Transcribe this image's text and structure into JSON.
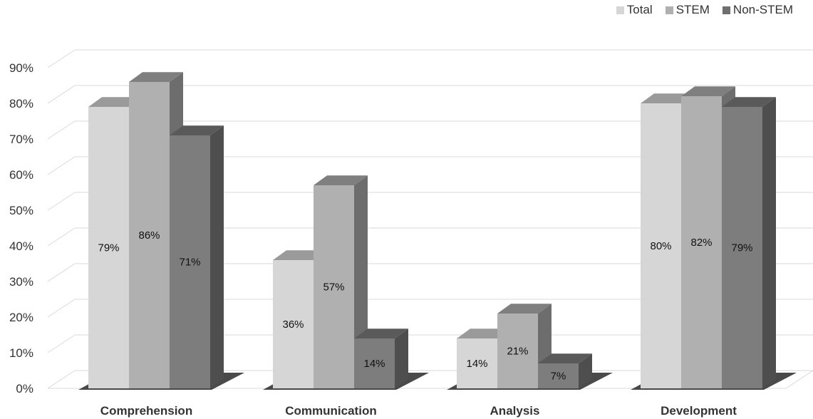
{
  "chart_data": {
    "type": "bar",
    "categories": [
      "Comprehension",
      "Communication",
      "Analysis",
      "Development"
    ],
    "series": [
      {
        "name": "Total",
        "values": [
          79,
          36,
          14,
          80
        ],
        "labels": [
          "79%",
          "36%",
          "14%",
          "80%"
        ],
        "color": "#d6d6d6"
      },
      {
        "name": "STEM",
        "values": [
          86,
          57,
          21,
          82
        ],
        "labels": [
          "86%",
          "57%",
          "21%",
          "82%"
        ],
        "color": "#b0b0b0"
      },
      {
        "name": "Non-STEM",
        "values": [
          71,
          14,
          7,
          79
        ],
        "labels": [
          "71%",
          "14%",
          "7%",
          "79%"
        ],
        "color": "#7d7d7d"
      }
    ],
    "ylim": [
      0,
      90
    ],
    "y_ticks": [
      "0%",
      "10%",
      "20%",
      "30%",
      "40%",
      "50%",
      "60%",
      "70%",
      "80%",
      "90%"
    ],
    "xlabel": "",
    "ylabel": "",
    "grid": true,
    "legend_position": "top-right",
    "style": "3d"
  }
}
